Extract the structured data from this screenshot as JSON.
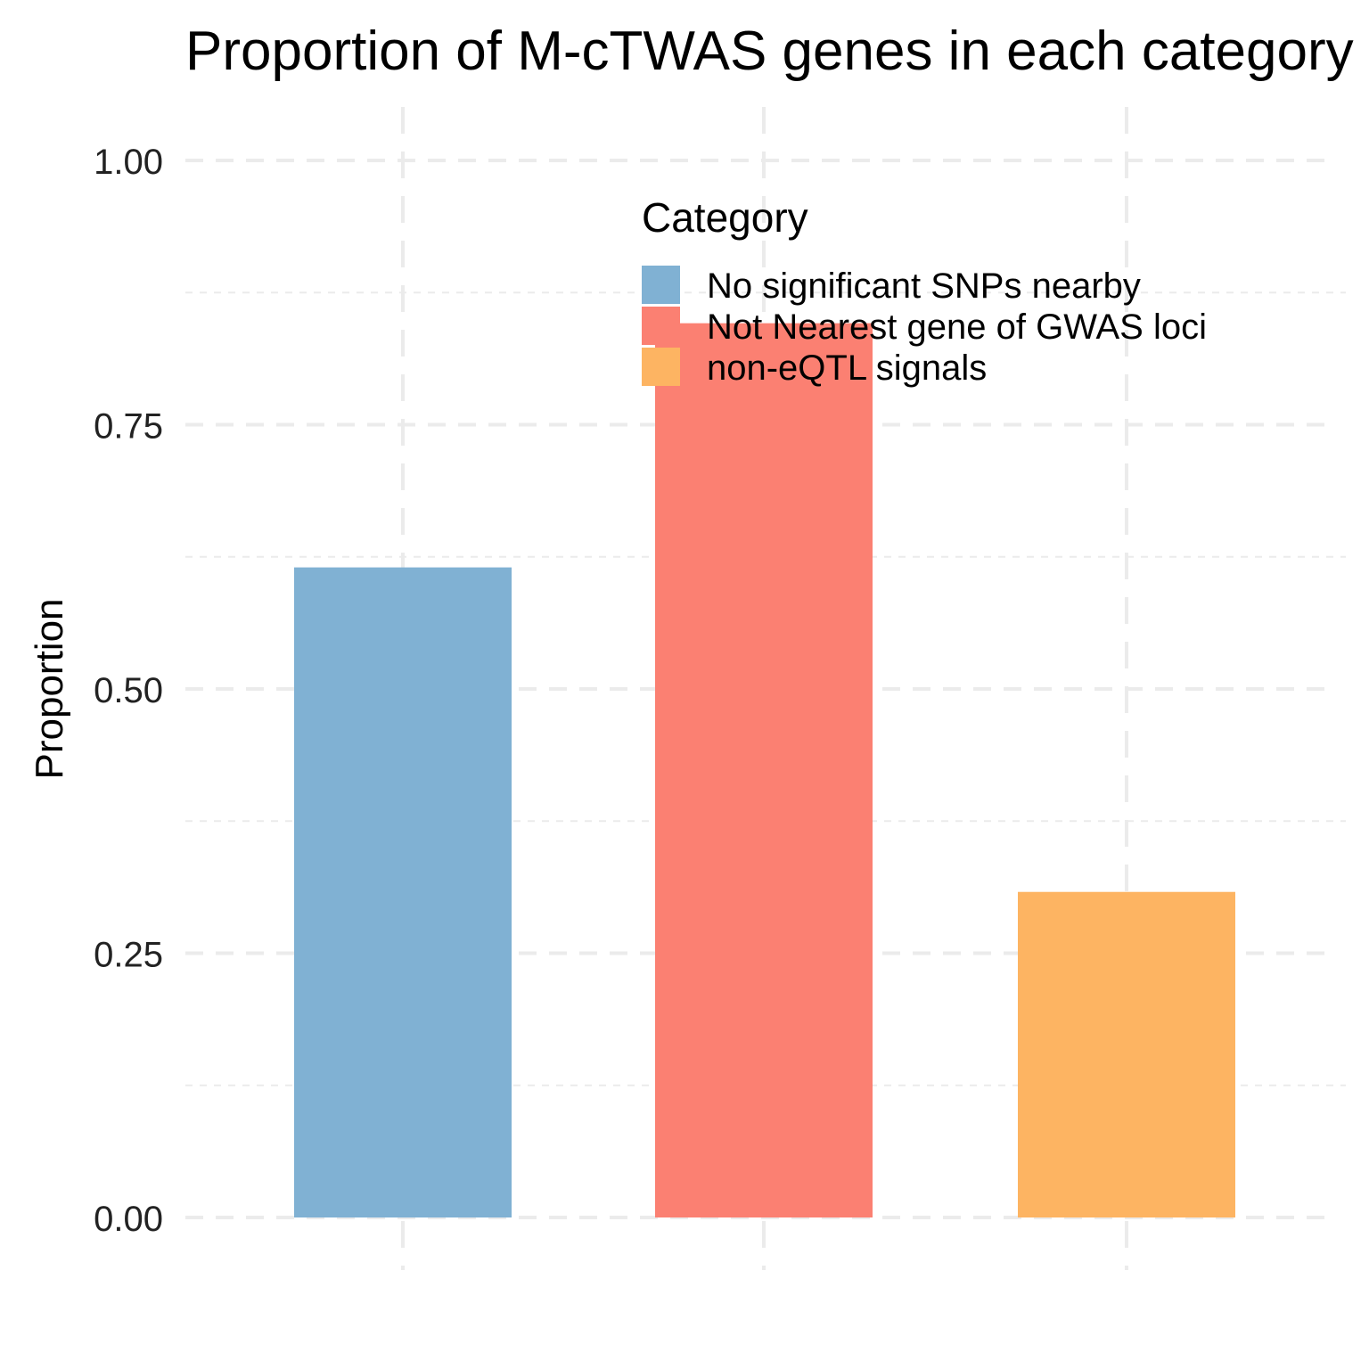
{
  "chart_data": {
    "type": "bar",
    "title": "Proportion of M-cTWAS genes in each category",
    "xlabel": "",
    "ylabel": "Proportion",
    "ylim": [
      0,
      1.05
    ],
    "yticks": [
      "0.00",
      "0.25",
      "0.50",
      "0.75",
      "1.00"
    ],
    "ytick_values": [
      0,
      0.25,
      0.5,
      0.75,
      1.0
    ],
    "categories": [
      "No significant SNPs nearby",
      "Not Nearest gene of GWAS loci",
      "non-eQTL signals"
    ],
    "values": [
      0.615,
      0.846,
      0.308
    ],
    "colors": [
      "#80B1D3",
      "#FB8072",
      "#FDB462"
    ],
    "grid": true,
    "legend": {
      "title": "Category",
      "placement": "top-right",
      "entries": [
        "No significant SNPs nearby",
        "Not Nearest gene of GWAS loci",
        "non-eQTL signals"
      ]
    }
  }
}
